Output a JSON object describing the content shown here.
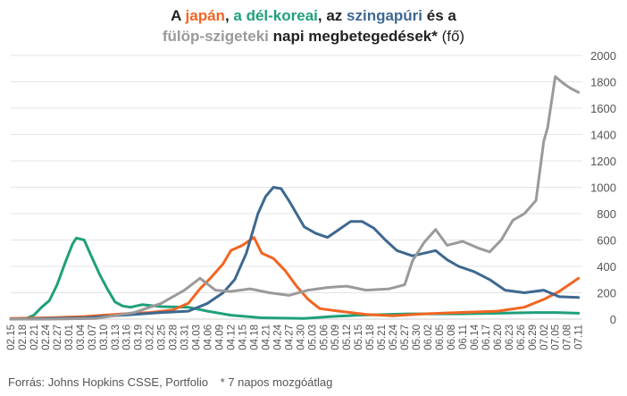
{
  "title": {
    "line1": [
      {
        "text": "A ",
        "color": "#222222",
        "bold": true
      },
      {
        "text": "japán",
        "color": "#F26522",
        "bold": true
      },
      {
        "text": ", ",
        "color": "#222222",
        "bold": true
      },
      {
        "text": "a dél-koreai",
        "color": "#1FA07A",
        "bold": true
      },
      {
        "text": ", az ",
        "color": "#222222",
        "bold": true
      },
      {
        "text": "szingapúri",
        "color": "#3E6890",
        "bold": true
      },
      {
        "text": " és a",
        "color": "#222222",
        "bold": true
      }
    ],
    "line2": [
      {
        "text": "fülöp-szigeteki",
        "color": "#9A9A9A",
        "bold": true
      },
      {
        "text": " napi megbetegedések*",
        "color": "#222222",
        "bold": true
      },
      {
        "text": " (fő)",
        "color": "#222222",
        "bold": false
      }
    ]
  },
  "footer": {
    "source": "Forrás: Johns Hopkins CSSE, Portfolio",
    "note": "* 7 napos mozgóátlag"
  },
  "chart_data": {
    "type": "line",
    "x_start": "02.15",
    "x_end": "07.12",
    "x_tick_labels": [
      "02.15",
      "02.18",
      "02.21",
      "02.24",
      "02.27",
      "03.01",
      "03.04",
      "03.07",
      "03.10",
      "03.13",
      "03.16",
      "03.19",
      "03.22",
      "03.25",
      "03.28",
      "03.31",
      "04.03",
      "04.06",
      "04.09",
      "04.12",
      "04.15",
      "04.18",
      "04.21",
      "04.24",
      "04.27",
      "04.30",
      "05.03",
      "05.06",
      "05.09",
      "05.12",
      "05.15",
      "05.18",
      "05.21",
      "05.24",
      "05.27",
      "05.30",
      "06.02",
      "06.05",
      "06.08",
      "06.11",
      "06.14",
      "06.17",
      "06.20",
      "06.23",
      "06.26",
      "06.29",
      "07.02",
      "07.05",
      "07.08",
      "07.11"
    ],
    "ylim": [
      0,
      2000
    ],
    "y_ticks": [
      0,
      200,
      400,
      600,
      800,
      1000,
      1200,
      1400,
      1600,
      1800,
      2000
    ],
    "y_axis_position": "right",
    "grid": "horizontal",
    "series": [
      {
        "color": "#1FA07A",
        "points": [
          [
            "02.15",
            0
          ],
          [
            "02.19",
            5
          ],
          [
            "02.21",
            30
          ],
          [
            "02.23",
            90
          ],
          [
            "02.25",
            140
          ],
          [
            "02.27",
            260
          ],
          [
            "02.29",
            420
          ],
          [
            "03.02",
            570
          ],
          [
            "03.03",
            615
          ],
          [
            "03.05",
            600
          ],
          [
            "03.07",
            470
          ],
          [
            "03.09",
            340
          ],
          [
            "03.11",
            230
          ],
          [
            "03.13",
            130
          ],
          [
            "03.15",
            100
          ],
          [
            "03.17",
            90
          ],
          [
            "03.20",
            110
          ],
          [
            "03.25",
            95
          ],
          [
            "04.01",
            90
          ],
          [
            "04.06",
            60
          ],
          [
            "04.12",
            30
          ],
          [
            "04.20",
            10
          ],
          [
            "05.01",
            5
          ],
          [
            "05.08",
            20
          ],
          [
            "05.15",
            30
          ],
          [
            "05.28",
            40
          ],
          [
            "06.10",
            40
          ],
          [
            "06.20",
            45
          ],
          [
            "06.30",
            50
          ],
          [
            "07.05",
            50
          ],
          [
            "07.11",
            45
          ]
        ]
      },
      {
        "color": "#F26522",
        "points": [
          [
            "02.15",
            5
          ],
          [
            "02.25",
            10
          ],
          [
            "03.05",
            20
          ],
          [
            "03.15",
            40
          ],
          [
            "03.22",
            50
          ],
          [
            "03.28",
            70
          ],
          [
            "04.01",
            120
          ],
          [
            "04.04",
            230
          ],
          [
            "04.07",
            320
          ],
          [
            "04.10",
            420
          ],
          [
            "04.12",
            520
          ],
          [
            "04.15",
            560
          ],
          [
            "04.18",
            620
          ],
          [
            "04.20",
            500
          ],
          [
            "04.23",
            460
          ],
          [
            "04.26",
            370
          ],
          [
            "04.29",
            250
          ],
          [
            "05.02",
            150
          ],
          [
            "05.05",
            80
          ],
          [
            "05.10",
            60
          ],
          [
            "05.17",
            35
          ],
          [
            "05.24",
            25
          ],
          [
            "06.01",
            40
          ],
          [
            "06.10",
            50
          ],
          [
            "06.20",
            60
          ],
          [
            "06.27",
            90
          ],
          [
            "07.02",
            150
          ],
          [
            "07.06",
            210
          ],
          [
            "07.09",
            270
          ],
          [
            "07.11",
            310
          ]
        ]
      },
      {
        "color": "#3E6890",
        "points": [
          [
            "02.15",
            0
          ],
          [
            "02.25",
            5
          ],
          [
            "03.05",
            10
          ],
          [
            "03.15",
            30
          ],
          [
            "03.25",
            50
          ],
          [
            "04.01",
            60
          ],
          [
            "04.06",
            120
          ],
          [
            "04.10",
            200
          ],
          [
            "04.13",
            300
          ],
          [
            "04.16",
            500
          ],
          [
            "04.19",
            800
          ],
          [
            "04.21",
            930
          ],
          [
            "04.23",
            1000
          ],
          [
            "04.25",
            990
          ],
          [
            "04.27",
            900
          ],
          [
            "04.29",
            800
          ],
          [
            "05.01",
            700
          ],
          [
            "05.04",
            650
          ],
          [
            "05.07",
            620
          ],
          [
            "05.10",
            680
          ],
          [
            "05.13",
            740
          ],
          [
            "05.16",
            740
          ],
          [
            "05.19",
            690
          ],
          [
            "05.22",
            600
          ],
          [
            "05.25",
            520
          ],
          [
            "05.29",
            480
          ],
          [
            "06.01",
            500
          ],
          [
            "06.04",
            520
          ],
          [
            "06.07",
            450
          ],
          [
            "06.10",
            400
          ],
          [
            "06.14",
            360
          ],
          [
            "06.18",
            300
          ],
          [
            "06.22",
            220
          ],
          [
            "06.27",
            200
          ],
          [
            "07.02",
            220
          ],
          [
            "07.06",
            170
          ],
          [
            "07.11",
            165
          ]
        ]
      },
      {
        "color": "#9A9A9A",
        "points": [
          [
            "02.15",
            0
          ],
          [
            "02.25",
            0
          ],
          [
            "03.08",
            5
          ],
          [
            "03.18",
            50
          ],
          [
            "03.25",
            120
          ],
          [
            "03.31",
            220
          ],
          [
            "04.04",
            310
          ],
          [
            "04.08",
            220
          ],
          [
            "04.12",
            210
          ],
          [
            "04.17",
            230
          ],
          [
            "04.22",
            200
          ],
          [
            "04.27",
            180
          ],
          [
            "05.02",
            220
          ],
          [
            "05.07",
            240
          ],
          [
            "05.12",
            250
          ],
          [
            "05.17",
            220
          ],
          [
            "05.23",
            230
          ],
          [
            "05.27",
            260
          ],
          [
            "05.29",
            440
          ],
          [
            "06.01",
            580
          ],
          [
            "06.04",
            680
          ],
          [
            "06.07",
            560
          ],
          [
            "06.11",
            590
          ],
          [
            "06.15",
            540
          ],
          [
            "06.18",
            510
          ],
          [
            "06.21",
            600
          ],
          [
            "06.24",
            750
          ],
          [
            "06.27",
            800
          ],
          [
            "06.30",
            900
          ],
          [
            "07.02",
            1350
          ],
          [
            "07.03",
            1450
          ],
          [
            "07.05",
            1840
          ],
          [
            "07.07",
            1790
          ],
          [
            "07.09",
            1750
          ],
          [
            "07.11",
            1720
          ]
        ]
      }
    ]
  }
}
